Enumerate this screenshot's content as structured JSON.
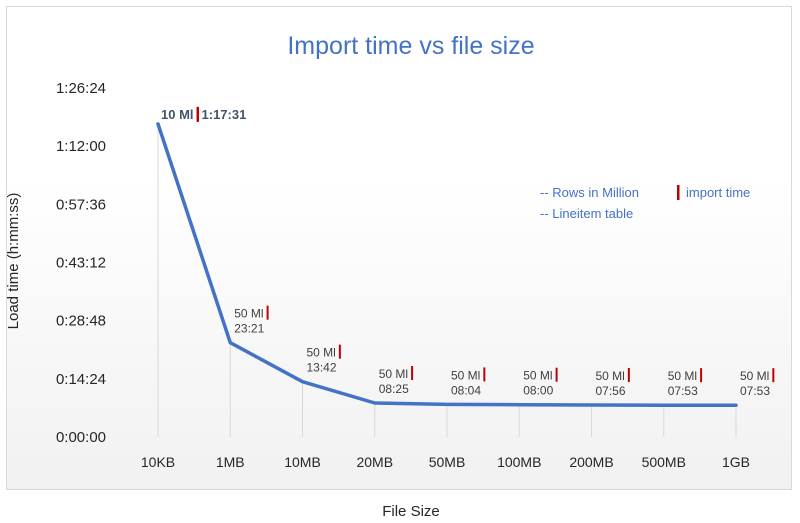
{
  "chart_data": {
    "type": "line",
    "title": "Import time vs file size",
    "xlabel": "File Size",
    "ylabel": "Load time (h:mm:ss)",
    "categories": [
      "10KB",
      "1MB",
      "10MB",
      "20MB",
      "50MB",
      "100MB",
      "200MB",
      "500MB",
      "1GB"
    ],
    "series": [
      {
        "values": [
          4651,
          1401,
          822,
          505,
          484,
          480,
          476,
          473,
          473
        ],
        "point_labels": [
          {
            "rows": "10 Ml",
            "time": "1:17:31"
          },
          {
            "rows": "50 Ml",
            "time": "23:21"
          },
          {
            "rows": "50 Ml",
            "time": "13:42"
          },
          {
            "rows": "50 Ml",
            "time": "08:25"
          },
          {
            "rows": "50 Ml",
            "time": "08:04"
          },
          {
            "rows": "50 Ml",
            "time": "08:00"
          },
          {
            "rows": "50 Ml",
            "time": "07:56"
          },
          {
            "rows": "50 Ml",
            "time": "07:53"
          },
          {
            "rows": "50 Ml",
            "time": "07:53"
          }
        ]
      }
    ],
    "y_ticks": [
      "0:00:00",
      "0:14:24",
      "0:28:48",
      "0:43:12",
      "0:57:36",
      "1:12:00",
      "1:26:24"
    ],
    "ylim": [
      0,
      5184
    ],
    "ytick_step": 864,
    "annotations": [
      "-- Rows in Million",
      "import time",
      "-- Lineitem table"
    ],
    "legend_position": "right",
    "colors": {
      "line": "#4472C4",
      "title": "#4472C4",
      "separator": "#C00000",
      "text": "#404040",
      "grid": "#d9d9d9"
    }
  }
}
